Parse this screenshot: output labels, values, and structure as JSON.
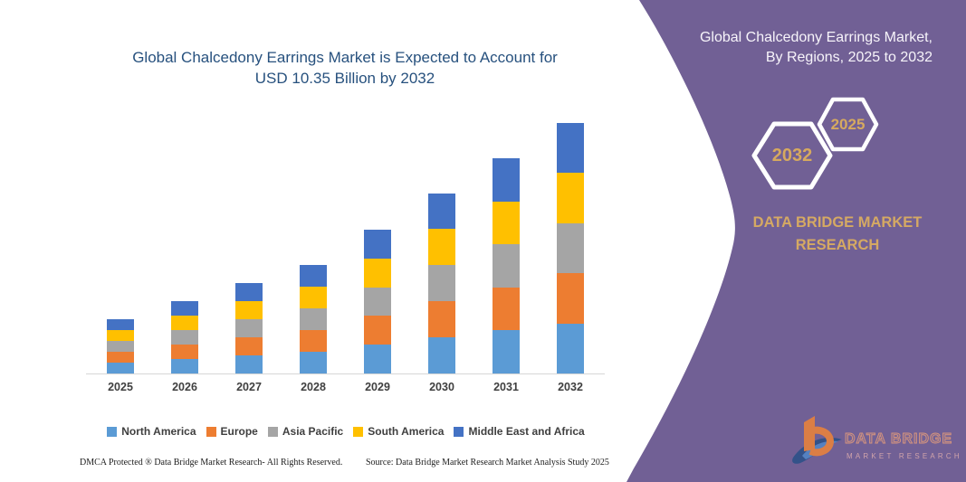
{
  "chart": {
    "title_line1": "Global Chalcedony Earrings Market is Expected to Account for",
    "title_line2": "USD 10.35 Billion by 2032",
    "title_color": "#27517E"
  },
  "chart_data": {
    "type": "bar",
    "stacked": true,
    "title": "Global Chalcedony Earrings Market is Expected to Account for USD 10.35 Billion by 2032",
    "units": "USD Billion",
    "categories": [
      "2025",
      "2026",
      "2027",
      "2028",
      "2029",
      "2030",
      "2031",
      "2032"
    ],
    "series": [
      {
        "name": "North America",
        "color": "#5B9BD5",
        "values": [
          0.45,
          0.6,
          0.75,
          0.9,
          1.19,
          1.49,
          1.78,
          2.07
        ]
      },
      {
        "name": "Europe",
        "color": "#ED7D31",
        "values": [
          0.45,
          0.6,
          0.75,
          0.9,
          1.19,
          1.49,
          1.78,
          2.07
        ]
      },
      {
        "name": "Asia Pacific",
        "color": "#A5A5A5",
        "values": [
          0.45,
          0.6,
          0.75,
          0.9,
          1.19,
          1.49,
          1.78,
          2.07
        ]
      },
      {
        "name": "South America",
        "color": "#FFC000",
        "values": [
          0.45,
          0.6,
          0.75,
          0.9,
          1.19,
          1.49,
          1.78,
          2.07
        ]
      },
      {
        "name": "Middle East and Africa",
        "color": "#4472C4",
        "values": [
          0.45,
          0.6,
          0.75,
          0.9,
          1.19,
          1.49,
          1.78,
          2.07
        ]
      }
    ],
    "totals": [
      2.25,
      3.0,
      3.75,
      4.5,
      5.95,
      7.45,
      8.9,
      10.35
    ],
    "ylim": [
      0,
      10.35
    ],
    "grid": false,
    "legend_position": "bottom"
  },
  "footer": {
    "dmca": "DMCA Protected ® Data Bridge Market Research-  All Rights Reserved.",
    "source": "Source: Data Bridge Market Research  Market Analysis Study 2025"
  },
  "panel": {
    "bg_color": "#716095",
    "gold_color": "#D5A963",
    "heading_line1": "Global Chalcedony Earrings Market,",
    "heading_line2": "By Regions, 2025 to 2032",
    "hex_back_year": "2032",
    "hex_front_year": "2025",
    "brand_line1": "DATA BRIDGE MARKET",
    "brand_line2": "RESEARCH",
    "logo": {
      "text_primary": "DATA BRIDGE",
      "text_secondary": "MARKET RESEARCH"
    }
  }
}
